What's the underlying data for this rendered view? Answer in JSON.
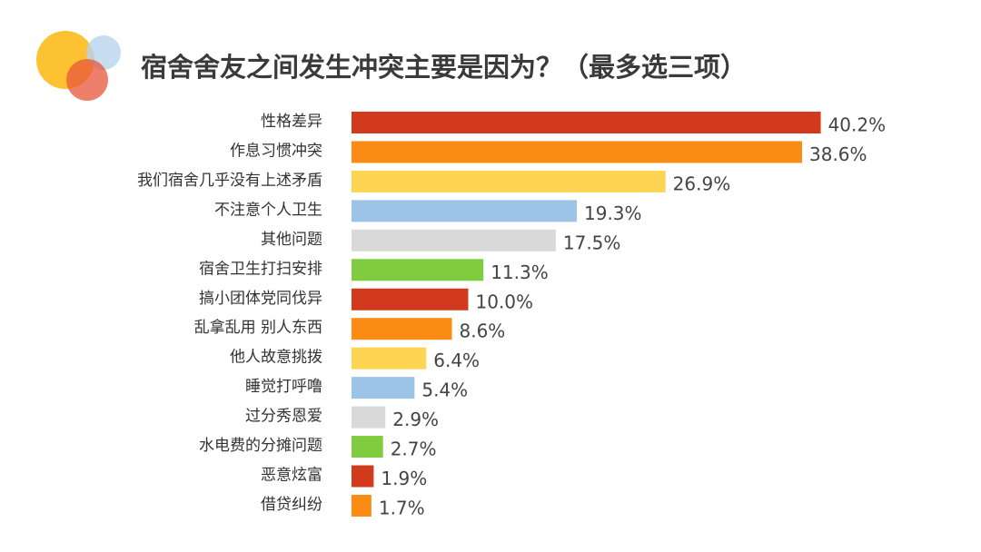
{
  "chart_data": {
    "type": "bar",
    "orientation": "horizontal",
    "title": "宿舍舍友之间发生冲突主要是因为？（最多选三项）",
    "categories": [
      "性格差异",
      "作息习惯冲突",
      "我们宿舍几乎没有上述矛盾",
      "不注意个人卫生",
      "其他问题",
      "宿舍卫生打扫安排",
      "搞小团体党同伐异",
      "乱拿乱用 别人东西",
      "他人故意挑拨",
      "睡觉打呼噜",
      "过分秀恩爱",
      "水电费的分摊问题",
      "恶意炫富",
      "借贷纠纷"
    ],
    "values": [
      40.2,
      38.6,
      26.9,
      19.3,
      17.5,
      11.3,
      10.0,
      8.6,
      6.4,
      5.4,
      2.9,
      2.7,
      1.9,
      1.7
    ],
    "value_labels": [
      "40.2%",
      "38.6%",
      "26.9%",
      "19.3%",
      "17.5%",
      "11.3%",
      "10.0%",
      "8.6%",
      "6.4%",
      "5.4%",
      "2.9%",
      "2.7%",
      "1.9%",
      "1.7%"
    ],
    "colors": [
      "#d13a1c",
      "#fb8c13",
      "#fdd553",
      "#9dc3e6",
      "#d9d9d9",
      "#7fcc3f",
      "#d13a1c",
      "#fb8c13",
      "#fdd553",
      "#9dc3e6",
      "#d9d9d9",
      "#7fcc3f",
      "#d13a1c",
      "#fb8c13"
    ]
  }
}
